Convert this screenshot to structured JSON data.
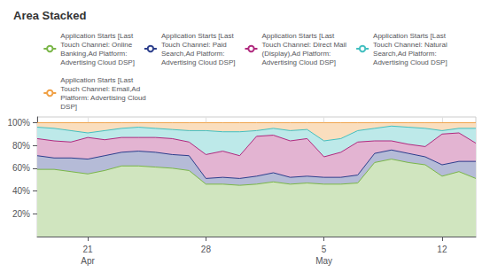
{
  "chart_data": {
    "type": "area",
    "title": "Area Stacked",
    "categories": [
      null,
      null,
      null,
      "21",
      null,
      null,
      null,
      null,
      null,
      null,
      "28",
      null,
      null,
      null,
      null,
      null,
      null,
      "5",
      null,
      null,
      null,
      null,
      null,
      null,
      "12",
      null,
      null
    ],
    "series": [
      {
        "name": "Application Starts [Last\nTouch Channel: Online\nBanking,Ad Platform:\nAdvertising Cloud DSP]",
        "color": "#7ab648",
        "values": [
          59,
          59,
          57,
          55,
          58,
          62,
          62,
          61,
          60,
          58,
          46,
          46,
          45,
          46,
          48,
          46,
          47,
          46,
          46,
          47,
          65,
          68,
          65,
          63,
          53,
          57,
          51
        ]
      },
      {
        "name": "Application Starts [Last\nTouch Channel: Paid\nSearch,Ad Platform:\nAdvertising Cloud DSP]",
        "color": "#2c3e8c",
        "values": [
          71,
          69,
          69,
          68,
          71,
          74,
          75,
          74,
          72,
          71,
          51,
          52,
          51,
          53,
          56,
          52,
          53,
          52,
          52,
          54,
          73,
          76,
          73,
          70,
          63,
          66,
          66
        ]
      },
      {
        "name": "Application Starts [Last\nTouch Channel: Direct Mail\n(Display),Ad Platform:\nAdvertising Cloud DSP]",
        "color": "#b0297e",
        "values": [
          86,
          84,
          83,
          87,
          85,
          87,
          87,
          87,
          86,
          83,
          72,
          75,
          71,
          88,
          89,
          84,
          86,
          70,
          74,
          83,
          84,
          84,
          81,
          79,
          90,
          91,
          82
        ]
      },
      {
        "name": "Application Starts [Last\nTouch Channel: Natural\nSearch,Ad Platform:\nAdvertising Cloud DSP]",
        "color": "#43bfc0",
        "values": [
          96,
          95,
          93,
          91,
          93,
          95,
          96,
          95,
          94,
          93,
          93,
          92,
          92,
          93,
          95,
          93,
          94,
          84,
          86,
          93,
          95,
          97,
          96,
          95,
          93,
          95,
          95
        ]
      },
      {
        "name": "Application Starts [Last\nTouch Channel: Email,Ad\nPlatform: Advertising Cloud\nDSP]",
        "color": "#f0a045",
        "values": [
          100,
          100,
          100,
          100,
          100,
          100,
          100,
          100,
          100,
          100,
          100,
          100,
          100,
          100,
          100,
          100,
          100,
          100,
          100,
          100,
          100,
          100,
          100,
          100,
          100,
          100,
          100
        ]
      }
    ],
    "ylim": [
      0,
      105
    ],
    "yticks": [
      {
        "value": 20,
        "label": "20%"
      },
      {
        "value": 40,
        "label": "40%"
      },
      {
        "value": 60,
        "label": "60%"
      },
      {
        "value": 80,
        "label": "80%"
      },
      {
        "value": 100,
        "label": "100%"
      }
    ],
    "grid": true,
    "legend": "top",
    "annotations": [
      {
        "text": "Apr",
        "at": "21"
      },
      {
        "text": "May",
        "at": "5"
      }
    ]
  }
}
